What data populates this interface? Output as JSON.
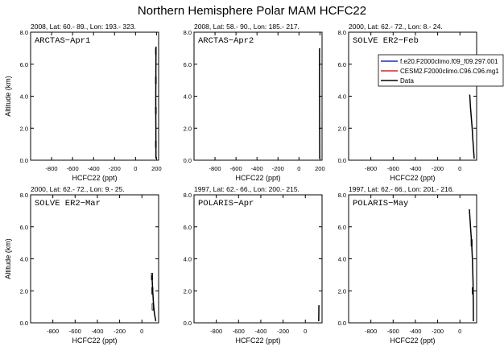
{
  "title": "Northern Hemisphere Polar MAM HCFC22",
  "colors": {
    "model1": "#1f2fb0",
    "model2": "#e02020",
    "data": "#000000",
    "frame": "#000000"
  },
  "chart_data": [
    {
      "type": "line",
      "panel_label": "ARCTAS−Apr1",
      "header": "2008, Lat:  60.- 89., Lon: 193.- 323.",
      "xlabel": "HCFC22 (ppt)",
      "ylabel": "Altitude (km)",
      "xlim": [
        -1000,
        220
      ],
      "ylim": [
        0,
        8
      ],
      "xticks": [
        "-800",
        "-600",
        "-400",
        "-200",
        "0",
        "200"
      ],
      "yticks": [
        "0.0",
        "2.0",
        "4.0",
        "6.0",
        "8.0"
      ],
      "series": [
        {
          "name": "Data",
          "x": [
            195,
            194,
            194,
            193,
            193,
            194,
            195
          ],
          "y": [
            0.1,
            1.0,
            2.0,
            3.0,
            4.0,
            5.5,
            7.1
          ]
        }
      ],
      "error_boxes": [
        {
          "x": [
            190,
            198
          ],
          "y": [
            6.6,
            7.0
          ]
        },
        {
          "x": [
            190,
            198
          ],
          "y": [
            4.8,
            5.2
          ]
        },
        {
          "x": [
            190,
            198
          ],
          "y": [
            2.9,
            3.3
          ]
        },
        {
          "x": [
            190,
            198
          ],
          "y": [
            0.8,
            1.2
          ]
        }
      ],
      "legend": []
    },
    {
      "type": "line",
      "panel_label": "ARCTAS−Apr2",
      "header": "2008, Lat:  58.- 90., Lon: 185.- 217.",
      "xlabel": "HCFC22 (ppt)",
      "ylabel": "",
      "xlim": [
        -1000,
        220
      ],
      "ylim": [
        0,
        8
      ],
      "xticks": [
        "-800",
        "-600",
        "-400",
        "-200",
        "0",
        "200"
      ],
      "yticks": [
        "0.0",
        "2.0",
        "4.0",
        "6.0",
        "8.0"
      ],
      "series": [
        {
          "name": "Data",
          "x": [
            198,
            197,
            196,
            196
          ],
          "y": [
            0.1,
            2.0,
            5.0,
            7.0
          ]
        }
      ],
      "error_boxes": [],
      "legend": []
    },
    {
      "type": "line",
      "panel_label": "SOLVE ER2−Feb",
      "header": "2000, Lat:  62.- 72., Lon:   8.-  24.",
      "xlabel": "HCFC22 (ppt)",
      "ylabel": "",
      "xlim": [
        -1000,
        150
      ],
      "ylim": [
        0,
        8
      ],
      "xticks": [
        "-800",
        "-600",
        "-400",
        "-200",
        "0",
        "200"
      ],
      "yticks": [
        "0.0",
        "2.0",
        "4.0",
        "6.0",
        "8.0"
      ],
      "series": [
        {
          "name": "Data",
          "x": [
            88,
            95,
            103,
            110,
            115,
            122,
            128
          ],
          "y": [
            4.1,
            3.3,
            2.6,
            2.0,
            1.4,
            0.7,
            0.1
          ]
        }
      ],
      "error_boxes": [],
      "legend": [
        "f.e20.F2000climo.f09_f09.297.001",
        "CESM2.F2000climo.C96.C96.mg1",
        "Data"
      ]
    },
    {
      "type": "line",
      "panel_label": "SOLVE ER2−Mar",
      "header": "2000, Lat:  62.- 72., Lon:   9.-  25.",
      "xlabel": "HCFC22 (ppt)",
      "ylabel": "Altitude (km)",
      "xlim": [
        -1000,
        150
      ],
      "ylim": [
        0,
        8
      ],
      "xticks": [
        "-800",
        "-600",
        "-400",
        "-200",
        "0",
        "200"
      ],
      "yticks": [
        "0.0",
        "2.0",
        "4.0",
        "6.0",
        "8.0"
      ],
      "series": [
        {
          "name": "Data",
          "x": [
            90,
            97,
            104,
            112,
            125
          ],
          "y": [
            3.0,
            2.0,
            1.2,
            0.6,
            0.1
          ]
        }
      ],
      "error_boxes": [
        {
          "x": [
            85,
            96
          ],
          "y": [
            2.7,
            3.1
          ]
        },
        {
          "x": [
            88,
            99
          ],
          "y": [
            1.8,
            2.2
          ]
        },
        {
          "x": [
            92,
            103
          ],
          "y": [
            0.8,
            1.2
          ]
        }
      ],
      "legend": []
    },
    {
      "type": "line",
      "panel_label": "POLARIS−Apr",
      "header": "1997, Lat:  62.- 66., Lon: 200.- 215.",
      "xlabel": "HCFC22 (ppt)",
      "ylabel": "",
      "xlim": [
        -1000,
        150
      ],
      "ylim": [
        0,
        8
      ],
      "xticks": [
        "-800",
        "-600",
        "-400",
        "-200",
        "0",
        "200"
      ],
      "yticks": [
        "0.0",
        "2.0",
        "4.0",
        "6.0",
        "8.0"
      ],
      "series": [
        {
          "name": "Data",
          "x": [
            120,
            121,
            122
          ],
          "y": [
            0.1,
            0.6,
            1.1
          ]
        }
      ],
      "error_boxes": [],
      "legend": []
    },
    {
      "type": "line",
      "panel_label": "POLARIS−May",
      "header": "1997, Lat:  62.- 66., Lon: 201.- 216.",
      "xlabel": "HCFC22 (ppt)",
      "ylabel": "",
      "xlim": [
        -1000,
        150
      ],
      "ylim": [
        0,
        8
      ],
      "xticks": [
        "-800",
        "-600",
        "-400",
        "-200",
        "0",
        "200"
      ],
      "yticks": [
        "0.0",
        "2.0",
        "4.0",
        "6.0",
        "8.0"
      ],
      "series": [
        {
          "name": "Data",
          "x": [
            85,
            95,
            105,
            112,
            118,
            120,
            121
          ],
          "y": [
            7.1,
            6.0,
            5.0,
            4.0,
            2.5,
            1.2,
            0.1
          ]
        }
      ],
      "error_boxes": [
        {
          "x": [
            100,
            110
          ],
          "y": [
            4.8,
            5.2
          ]
        },
        {
          "x": [
            110,
            120
          ],
          "y": [
            1.8,
            2.2
          ]
        }
      ],
      "legend": []
    }
  ]
}
